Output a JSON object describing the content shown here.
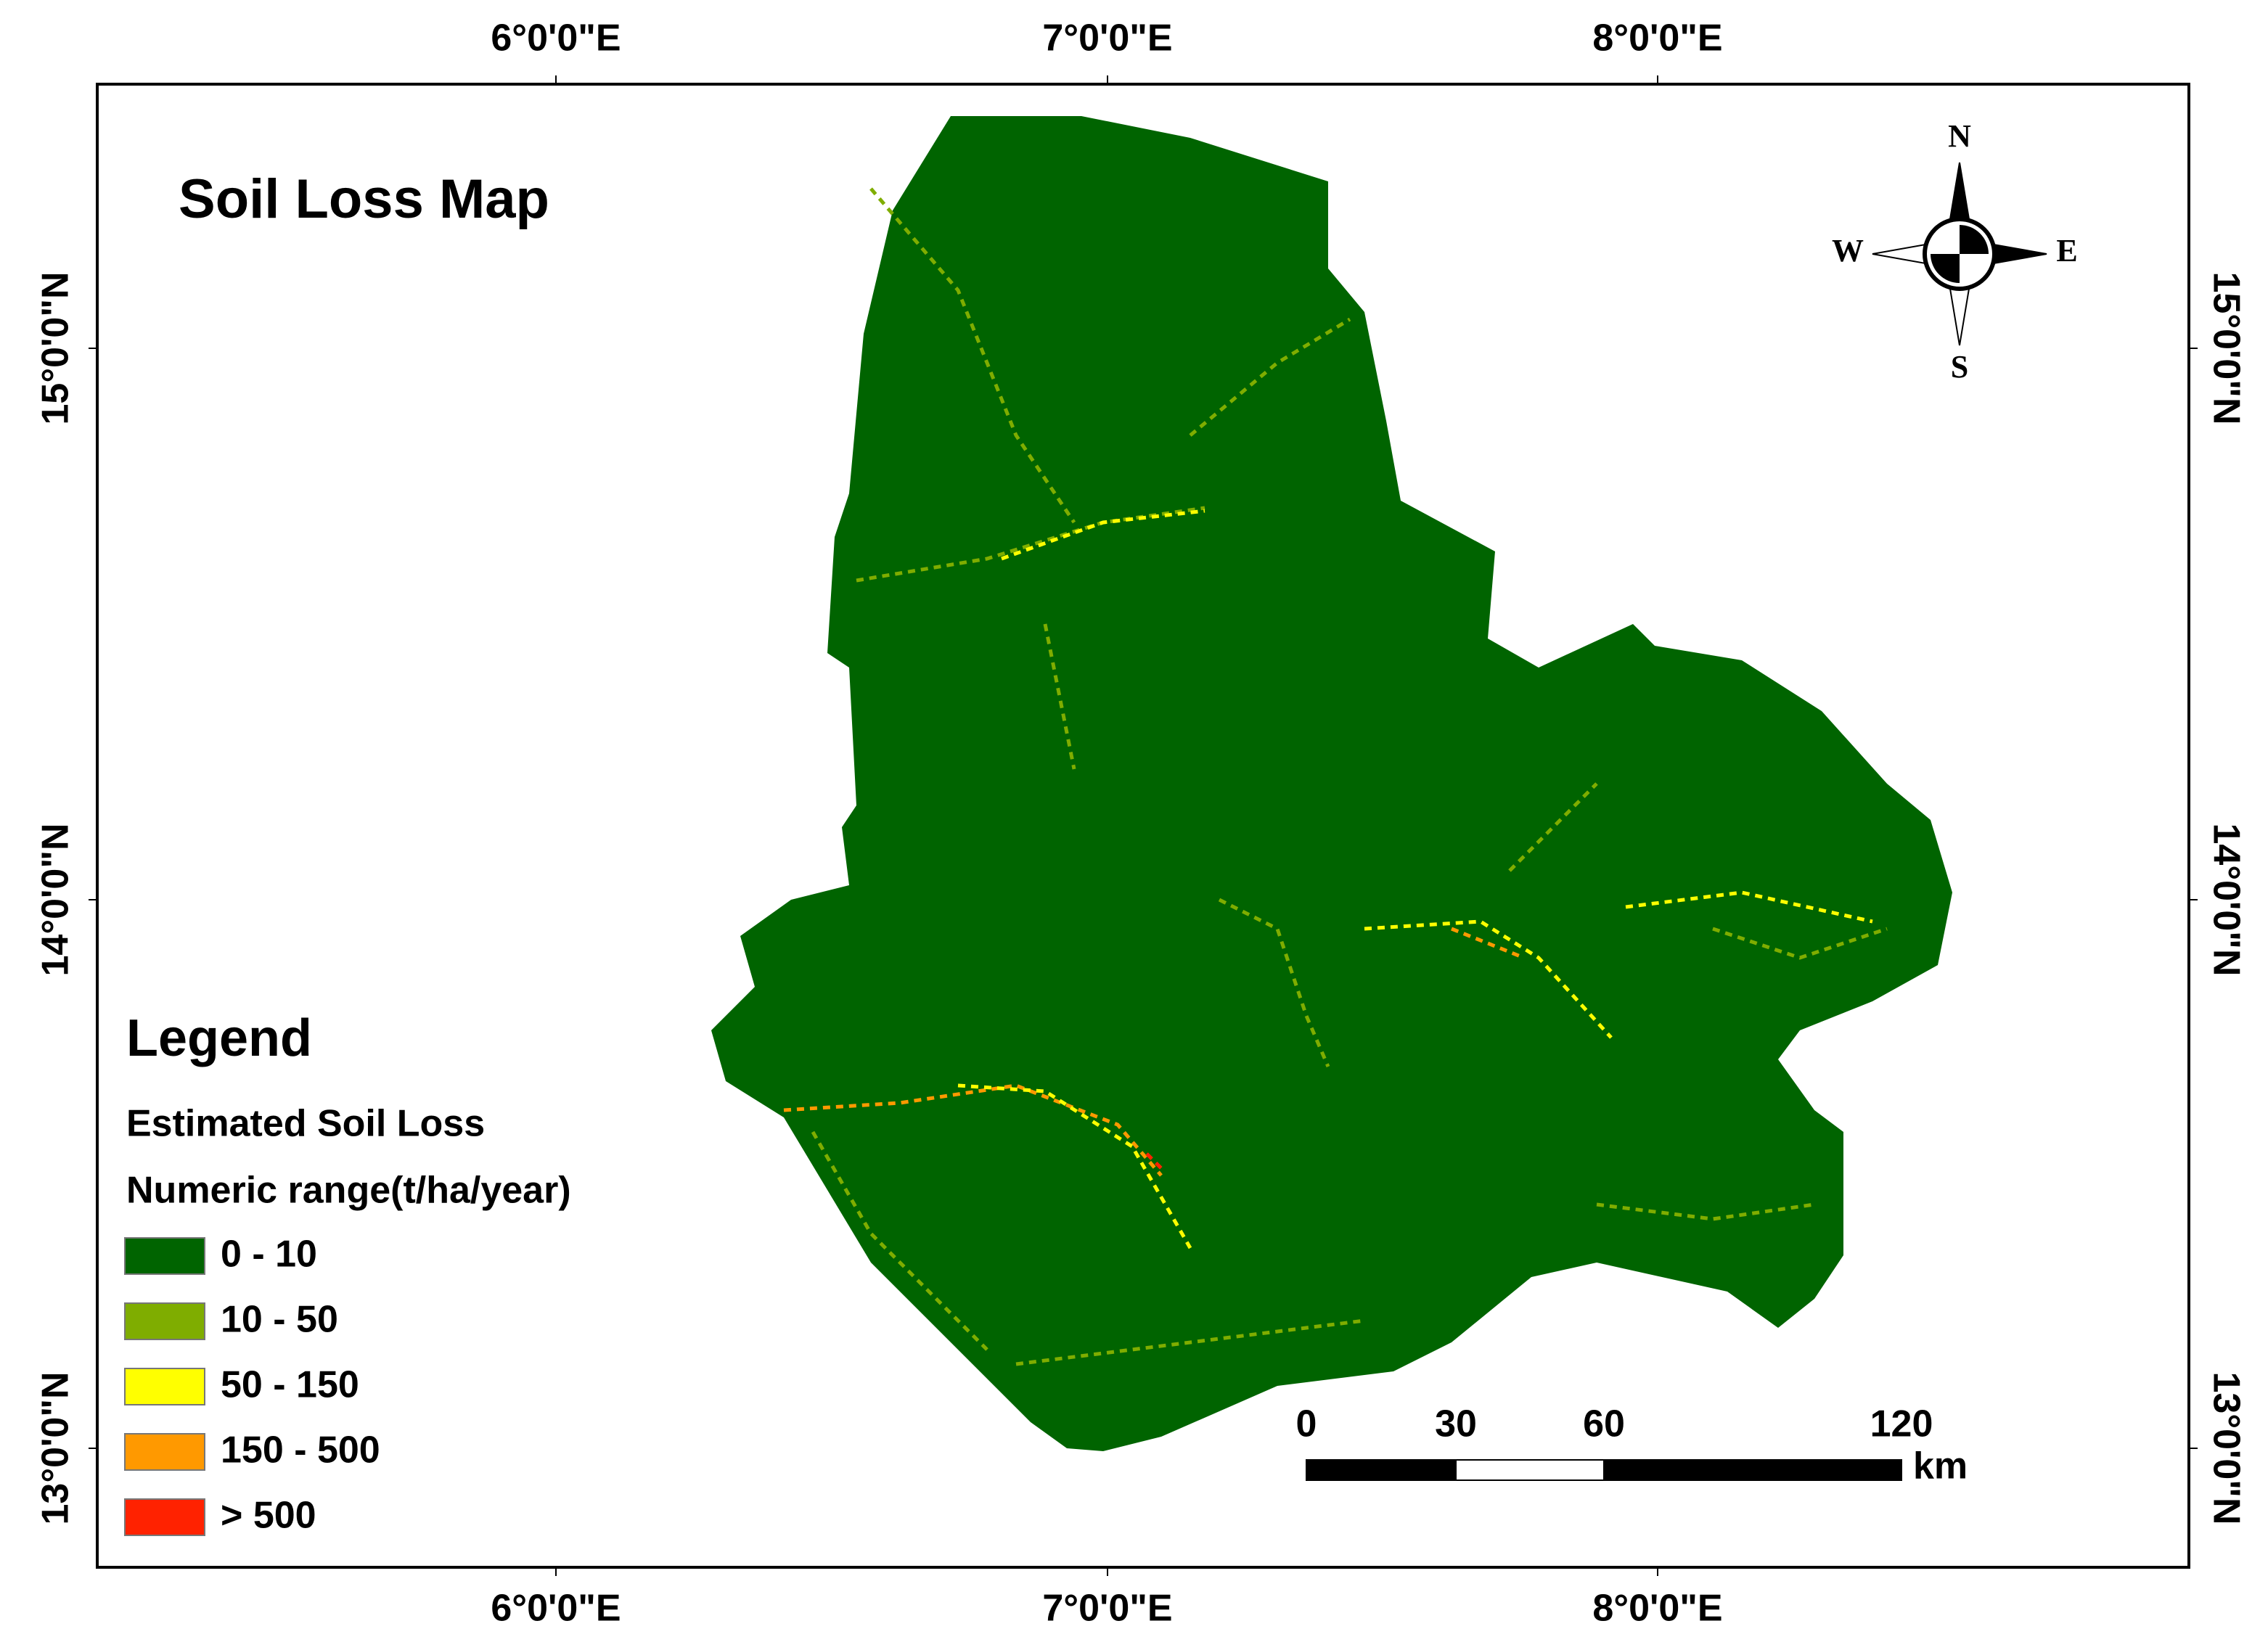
{
  "title": "Soil Loss Map",
  "legend": {
    "title": "Legend",
    "subtitle": "Estimated Soil Loss",
    "units": "Numeric range(t/ha/year)",
    "items": [
      {
        "label": "0 - 10",
        "color": "#006400"
      },
      {
        "label": "10 - 50",
        "color": "#7fad00"
      },
      {
        "label": "50 - 150",
        "color": "#ffff00"
      },
      {
        "label": "150 - 500",
        "color": "#ff9900"
      },
      {
        "label": "> 500",
        "color": "#ff2200"
      }
    ]
  },
  "longitude_labels": [
    "6°0'0\"E",
    "7°0'0\"E",
    "8°0'0\"E"
  ],
  "latitude_labels": [
    "15°0'0\"N",
    "14°0'0\"N",
    "13°0'0\"N"
  ],
  "compass": {
    "north": "N",
    "south": "S",
    "east": "E",
    "west": "W"
  },
  "scale_bar": {
    "labels": [
      "0",
      "30",
      "60",
      "120"
    ],
    "unit": "km"
  }
}
